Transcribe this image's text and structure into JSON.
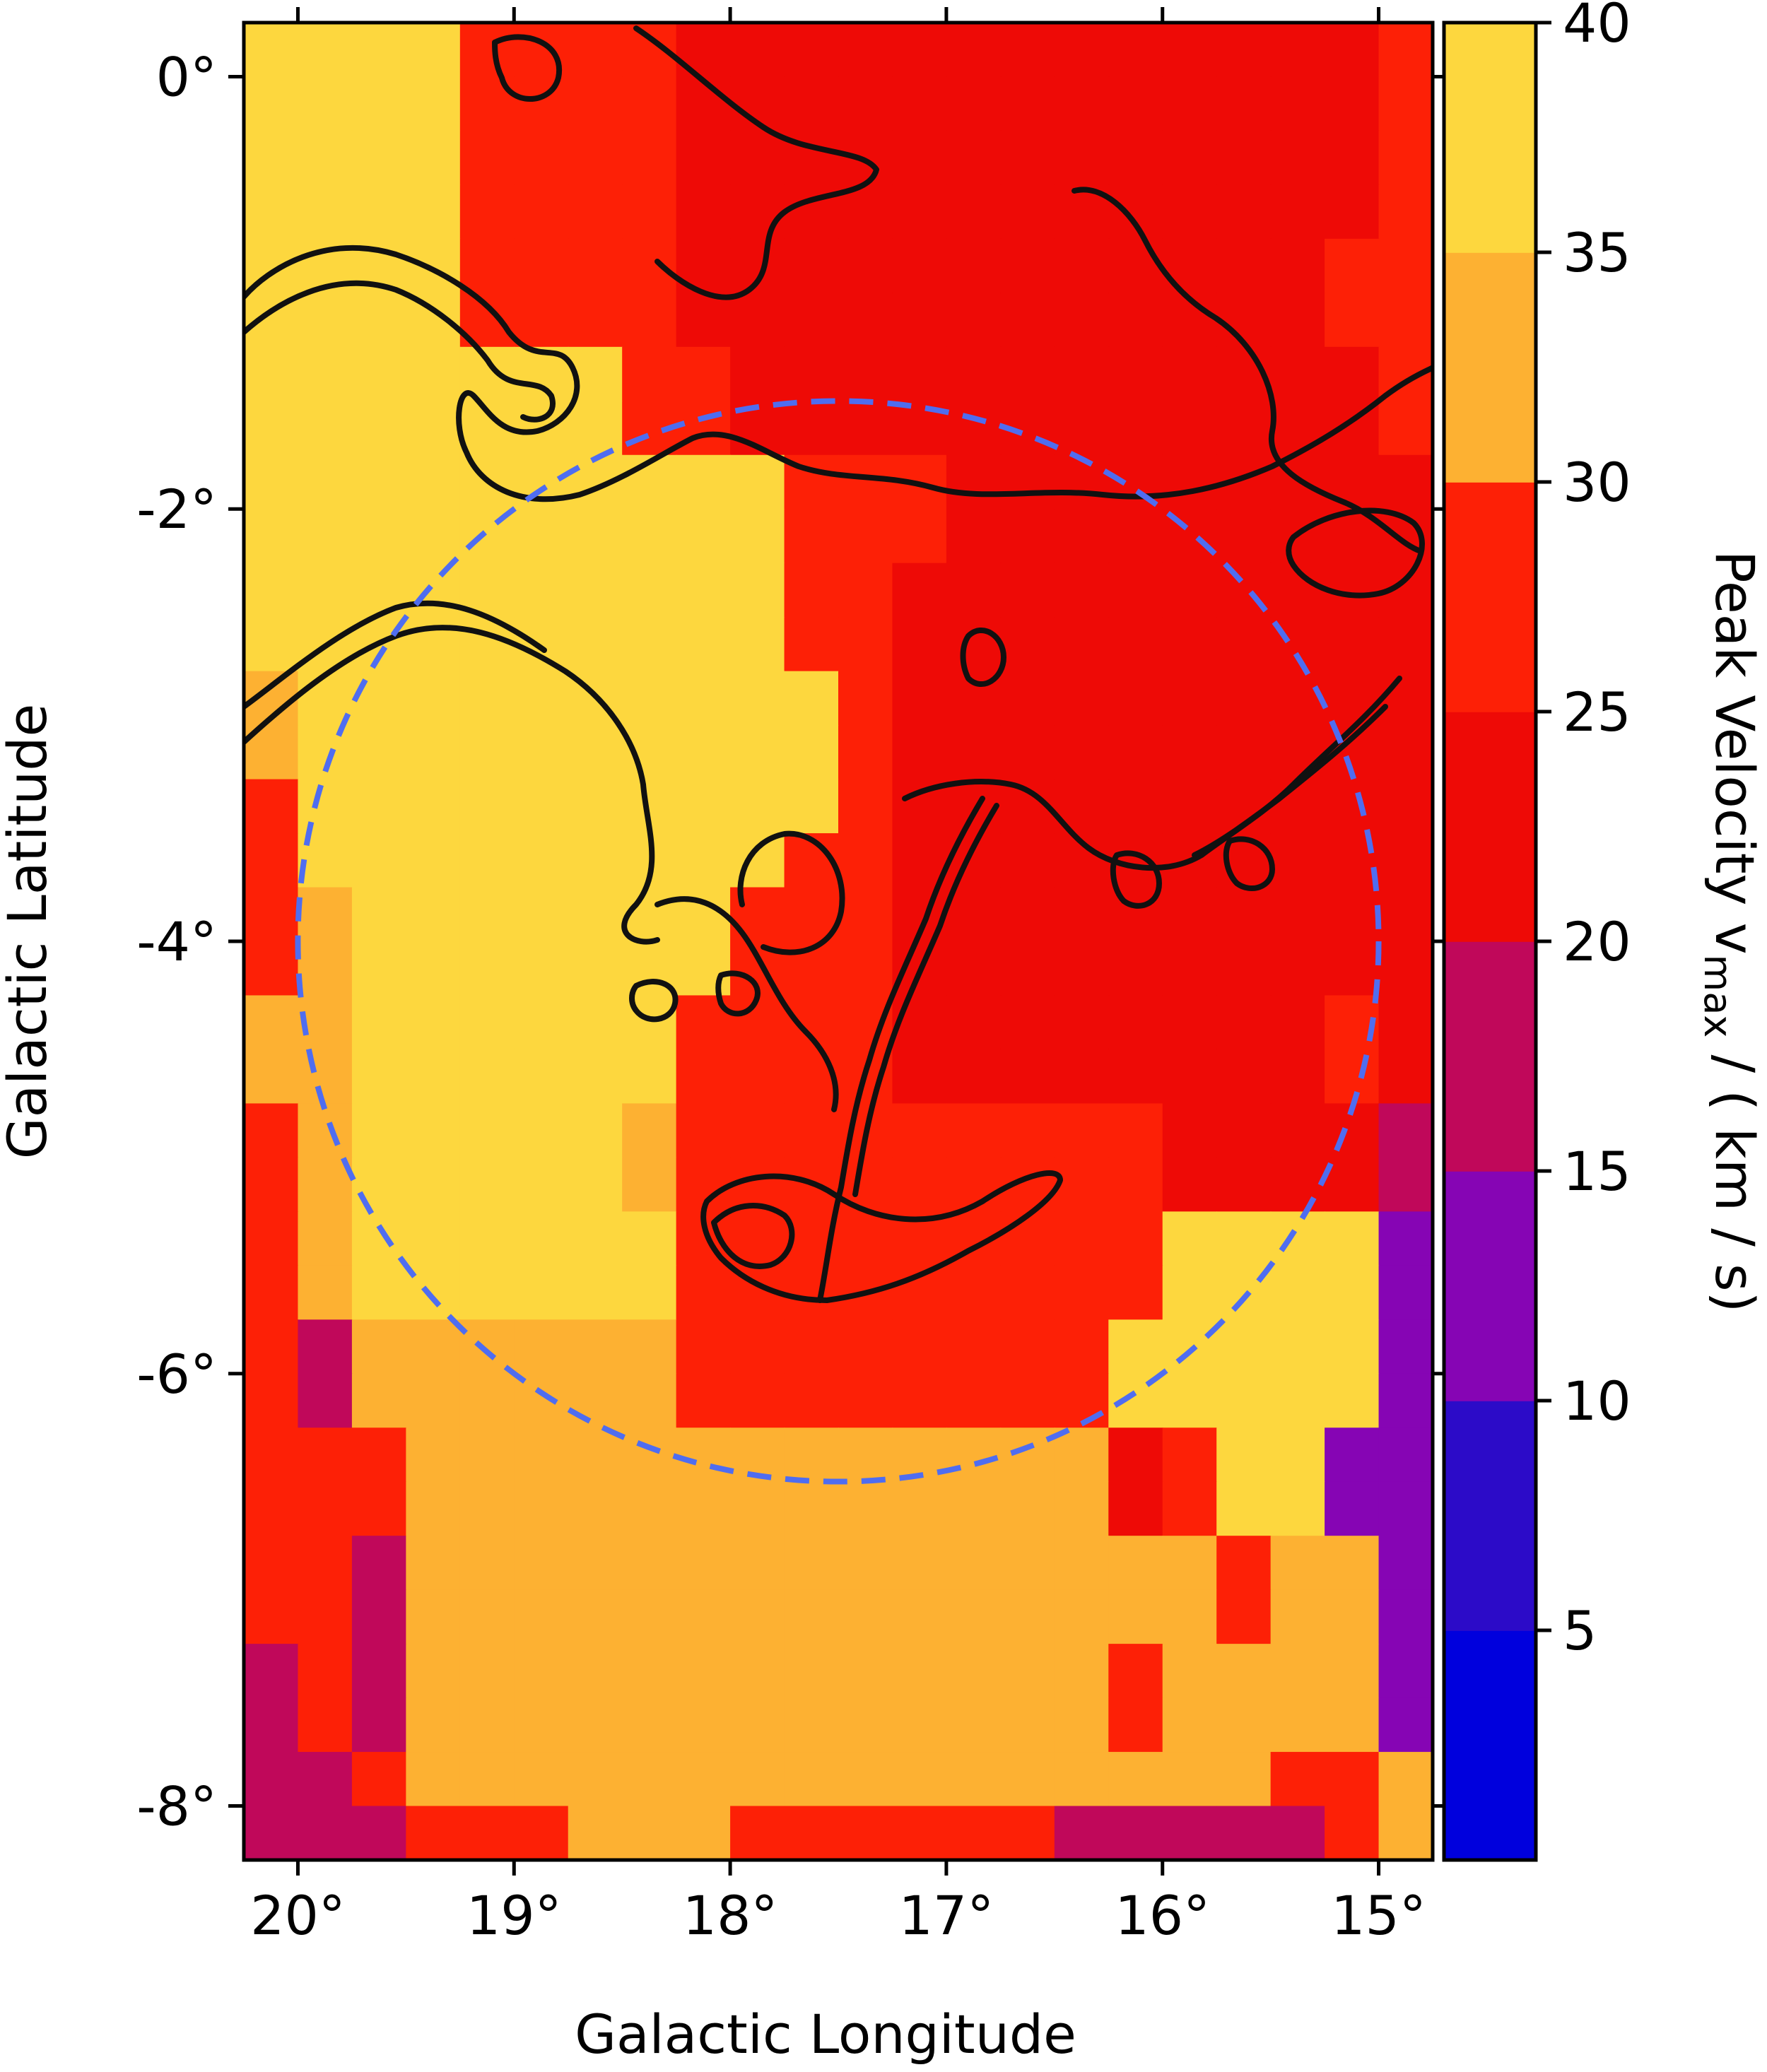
{
  "chart_data": {
    "type": "heatmap",
    "title": "",
    "xlabel": "Galactic Longitude",
    "ylabel": "Galactic Latitude",
    "x_ticks": [
      {
        "value": 20,
        "label": "20°"
      },
      {
        "value": 19,
        "label": "19°"
      },
      {
        "value": 18,
        "label": "18°"
      },
      {
        "value": 17,
        "label": "17°"
      },
      {
        "value": 16,
        "label": "16°"
      },
      {
        "value": 15,
        "label": "15°"
      }
    ],
    "y_ticks": [
      {
        "value": 0,
        "label": "0°"
      },
      {
        "value": -2,
        "label": "-2°"
      },
      {
        "value": -4,
        "label": "-4°"
      },
      {
        "value": -6,
        "label": "-6°"
      },
      {
        "value": -8,
        "label": "-8°"
      }
    ],
    "xlim": [
      20.25,
      14.75
    ],
    "ylim": [
      -8.25,
      0.25
    ],
    "grid": false,
    "colorbar": {
      "label": "Peak Velocity v",
      "label_sub": "max",
      "label_unit": " / ( km / s)",
      "range": [
        0,
        40
      ],
      "ticks": [
        {
          "value": 5,
          "label": "5"
        },
        {
          "value": 10,
          "label": "10"
        },
        {
          "value": 15,
          "label": "15"
        },
        {
          "value": 20,
          "label": "20"
        },
        {
          "value": 25,
          "label": "25"
        },
        {
          "value": 30,
          "label": "30"
        },
        {
          "value": 35,
          "label": "35"
        },
        {
          "value": 40,
          "label": "40"
        }
      ],
      "levels": [
        {
          "min": 0,
          "max": 5,
          "color": "#0000dd"
        },
        {
          "min": 5,
          "max": 10,
          "color": "#2c0bc8"
        },
        {
          "min": 10,
          "max": 15,
          "color": "#8605b4"
        },
        {
          "min": 15,
          "max": 20,
          "color": "#c0085a"
        },
        {
          "min": 20,
          "max": 25,
          "color": "#ee0a06"
        },
        {
          "min": 25,
          "max": 30,
          "color": "#fd2006"
        },
        {
          "min": 30,
          "max": 35,
          "color": "#fdb132"
        },
        {
          "min": 35,
          "max": 40,
          "color": "#fdd73e"
        }
      ]
    },
    "grid_cell_size_deg": 0.25,
    "grid_origin": {
      "l_left": 20.25,
      "b_top": 0.25
    },
    "columns": 22,
    "rows": 34,
    "level_codes": [
      "7777AAAA5555555555555A",
      "7777AAAA5555555555555A",
      "7777AAAA5555555555555A",
      "7777AAAA5555555555555A",
      "7777AAAA555555555555AA",
      "7777AAAA555555555555AA",
      "7777777AA555555555555A",
      "7777777AA555555555555A",
      "7777777777AAA555555555",
      "7777777777AAA555555555",
      "7777777777AA5555555555",
      "7777777777AA5555555555",
      "67777777777A5555555555",
      "67777777777A5555555555",
      "A7777777777A5555555555",
      "A777777777AA5555555555",
      "A67777777AAA5555555555",
      "A67777777AAA5555555555",
      "66777777AAAA55555555A5",
      "66777777AAAA55555555A5",
      "A6777776AAAAAAAAA55553",
      "A6777776AAAAAAAAA55553",
      "A6777777AAAAAAAAA77772",
      "A6777777AAAAAAAAA77772",
      "A3666666AAAAAAAA777772",
      "A3666666AAAAAAAA777772",
      "AAA66666666666665A7722",
      "AAA66666666666665A7722",
      "AA3666666666666666A662",
      "AA3666666666666666A662",
      "3A36666666666666A66662",
      "3A36666666666666A66662",
      "33A6666666666666666AA6",
      "333AAA666AAAAAA33333A6"
    ],
    "level_code_legend": "2=10-15, 3=15-20, 5=20-25, A=25-30, 6=30-35, 7=35-40",
    "overlay_circle": {
      "center_l": 17.5,
      "center_b": -4.0,
      "radius_deg": 2.5,
      "color": "#4f6df0",
      "style": "dashed"
    }
  }
}
